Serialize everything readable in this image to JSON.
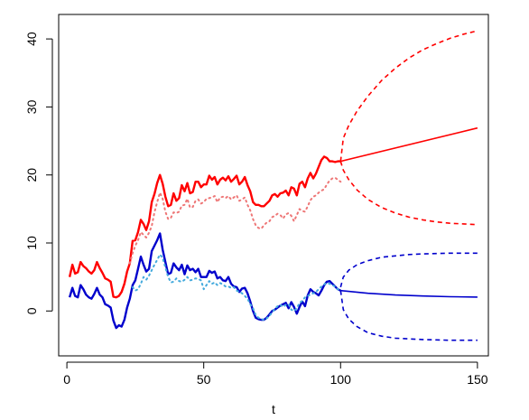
{
  "chart_data": {
    "type": "line",
    "title": "",
    "xlabel": "t",
    "ylabel": "",
    "xlim": [
      -3,
      154
    ],
    "ylim": [
      -6.6,
      43.6
    ],
    "xticks": [
      0,
      50,
      100,
      150
    ],
    "yticks": [
      0,
      10,
      20,
      30,
      40
    ],
    "grid": false,
    "legend": "none",
    "series": [
      {
        "style": "solid",
        "color": "#ff0000",
        "width": 2.4,
        "x": [
          1,
          2,
          3,
          4,
          5,
          6,
          7,
          8,
          9,
          10,
          11,
          12,
          13,
          14,
          15,
          16,
          17,
          18,
          19,
          20,
          21,
          22,
          23,
          24,
          25,
          26,
          27,
          28,
          29,
          30,
          31,
          32,
          33,
          34,
          35,
          36,
          37,
          38,
          39,
          40,
          41,
          42,
          43,
          44,
          45,
          46,
          47,
          48,
          49,
          50,
          51,
          52,
          53,
          54,
          55,
          56,
          57,
          58,
          59,
          60,
          61,
          62,
          63,
          64,
          65,
          66,
          67,
          68,
          69,
          70,
          71,
          72,
          73,
          74,
          75,
          76,
          77,
          78,
          79,
          80,
          81,
          82,
          83,
          84,
          85,
          86,
          87,
          88,
          89,
          90,
          91,
          92,
          93,
          94,
          95,
          96,
          97,
          98,
          99,
          100
        ],
        "y": [
          5.0,
          6.8,
          5.5,
          5.7,
          7.2,
          6.6,
          6.3,
          5.8,
          5.5,
          6.0,
          7.2,
          6.3,
          5.6,
          4.8,
          4.6,
          4.3,
          2.1,
          2.0,
          2.2,
          2.8,
          4.0,
          5.8,
          7.0,
          10.3,
          10.4,
          11.6,
          13.4,
          12.8,
          11.9,
          13.2,
          16.0,
          17.2,
          18.8,
          20.0,
          18.7,
          16.8,
          15.4,
          15.6,
          17.3,
          16.2,
          16.6,
          18.5,
          17.6,
          18.8,
          17.3,
          17.5,
          19.0,
          19.0,
          18.2,
          18.6,
          18.6,
          19.9,
          19.3,
          19.7,
          18.6,
          19.3,
          19.6,
          19.2,
          19.8,
          19.0,
          19.4,
          19.9,
          18.6,
          19.0,
          19.7,
          18.5,
          17.6,
          16.0,
          15.6,
          15.6,
          15.4,
          15.4,
          15.8,
          16.2,
          17.0,
          17.2,
          16.8,
          17.3,
          17.4,
          17.7,
          17.0,
          18.2,
          18.0,
          17.0,
          18.7,
          19.0,
          18.2,
          19.5,
          20.3,
          19.5,
          20.2,
          21.2,
          22.2,
          22.7,
          22.5,
          22.0,
          22.0,
          21.9,
          22.0,
          22.0
        ]
      },
      {
        "style": "dotted",
        "color": "#ee7777",
        "width": 2.0,
        "x": [
          23,
          24,
          25,
          26,
          27,
          28,
          29,
          30,
          31,
          32,
          33,
          34,
          35,
          36,
          37,
          38,
          39,
          40,
          41,
          42,
          43,
          44,
          45,
          46,
          47,
          48,
          49,
          50,
          51,
          52,
          53,
          54,
          55,
          56,
          57,
          58,
          59,
          60,
          61,
          62,
          63,
          64,
          65,
          66,
          67,
          68,
          69,
          70,
          71,
          72,
          73,
          74,
          75,
          76,
          77,
          78,
          79,
          80,
          81,
          82,
          83,
          84,
          85,
          86,
          87,
          88,
          89,
          90,
          91,
          92,
          93,
          94,
          95,
          96,
          97,
          98,
          99,
          100
        ],
        "y": [
          7.0,
          8.5,
          9.6,
          10.4,
          11.6,
          11.2,
          10.8,
          11.5,
          12.5,
          14.5,
          16.0,
          17.4,
          16.5,
          14.6,
          13.5,
          13.7,
          14.5,
          14.4,
          14.6,
          15.5,
          15.6,
          16.5,
          15.2,
          15.3,
          16.2,
          16.4,
          15.8,
          16.0,
          16.5,
          16.6,
          16.7,
          16.9,
          16.0,
          16.7,
          16.8,
          16.6,
          16.9,
          16.4,
          16.7,
          17.0,
          16.2,
          16.4,
          16.7,
          15.6,
          14.8,
          13.5,
          12.6,
          12.2,
          12.1,
          12.6,
          13.0,
          13.2,
          13.8,
          14.0,
          14.3,
          14.1,
          13.6,
          14.2,
          14.4,
          14.0,
          13.2,
          14.1,
          15.0,
          14.7,
          14.6,
          15.4,
          16.3,
          16.8,
          17.0,
          17.4,
          17.7,
          17.9,
          18.6,
          19.2,
          19.5,
          19.6,
          19.3,
          19.0
        ]
      },
      {
        "style": "solid",
        "color": "#0000cc",
        "width": 2.4,
        "x": [
          1,
          2,
          3,
          4,
          5,
          6,
          7,
          8,
          9,
          10,
          11,
          12,
          13,
          14,
          15,
          16,
          17,
          18,
          19,
          20,
          21,
          22,
          23,
          24,
          25,
          26,
          27,
          28,
          29,
          30,
          31,
          32,
          33,
          34,
          35,
          36,
          37,
          38,
          39,
          40,
          41,
          42,
          43,
          44,
          45,
          46,
          47,
          48,
          49,
          50,
          51,
          52,
          53,
          54,
          55,
          56,
          57,
          58,
          59,
          60,
          61,
          62,
          63,
          64,
          65,
          66,
          67,
          68,
          69,
          70,
          71,
          72,
          73,
          74,
          75,
          76,
          77,
          78,
          79,
          80,
          81,
          82,
          83,
          84,
          85,
          86,
          87,
          88,
          89,
          90,
          91,
          92,
          93,
          94,
          95,
          96,
          97,
          98,
          99,
          100
        ],
        "y": [
          2.0,
          3.4,
          2.2,
          2.0,
          3.8,
          3.2,
          2.4,
          2.0,
          1.8,
          2.5,
          3.4,
          2.4,
          2.0,
          1.0,
          0.8,
          0.5,
          -1.4,
          -2.5,
          -2.1,
          -2.3,
          -1.3,
          0.5,
          1.8,
          3.8,
          4.5,
          6.2,
          8.0,
          6.8,
          5.8,
          6.2,
          8.8,
          9.6,
          10.4,
          11.4,
          9.0,
          7.2,
          5.4,
          5.6,
          7.0,
          6.4,
          6.0,
          6.8,
          5.4,
          6.7,
          6.0,
          6.2,
          5.7,
          6.2,
          5.0,
          5.0,
          5.0,
          5.9,
          5.6,
          5.8,
          4.8,
          5.0,
          4.5,
          4.4,
          5.0,
          4.0,
          3.6,
          3.5,
          2.8,
          3.3,
          3.4,
          2.6,
          1.4,
          0.0,
          -1.0,
          -1.2,
          -1.3,
          -1.3,
          -1.0,
          -0.5,
          0.0,
          0.2,
          0.5,
          0.8,
          1.0,
          1.2,
          0.4,
          1.3,
          0.6,
          -0.4,
          0.6,
          1.4,
          0.7,
          2.3,
          3.2,
          2.8,
          2.6,
          2.3,
          3.0,
          3.8,
          4.3,
          4.4,
          4.0,
          3.6,
          3.2,
          3.0
        ]
      },
      {
        "style": "dotted",
        "color": "#44aadd",
        "width": 2.0,
        "x": [
          24,
          25,
          26,
          27,
          28,
          29,
          30,
          31,
          32,
          33,
          34,
          35,
          36,
          37,
          38,
          39,
          40,
          41,
          42,
          43,
          44,
          45,
          46,
          47,
          48,
          49,
          50,
          51,
          52,
          53,
          54,
          55,
          56,
          57,
          58,
          59,
          60,
          61,
          62,
          63,
          64,
          65,
          66,
          67,
          68,
          69,
          70,
          71,
          72,
          73,
          74,
          75,
          76,
          77,
          78,
          79,
          80,
          81,
          82,
          83,
          84,
          85,
          86,
          87,
          88,
          89,
          90,
          91,
          92,
          93,
          94,
          95,
          96,
          97,
          98,
          99,
          100
        ],
        "y": [
          3.5,
          3.0,
          3.2,
          4.0,
          5.0,
          4.6,
          5.2,
          6.0,
          6.8,
          7.5,
          8.3,
          7.8,
          6.4,
          5.0,
          4.2,
          4.3,
          4.8,
          4.4,
          4.3,
          4.6,
          5.0,
          4.5,
          4.6,
          4.8,
          4.7,
          4.5,
          3.2,
          3.8,
          4.4,
          4.0,
          4.2,
          3.8,
          4.1,
          3.9,
          3.6,
          3.6,
          3.4,
          3.5,
          3.0,
          2.8,
          2.6,
          2.2,
          1.8,
          1.0,
          0.4,
          -0.6,
          -1.0,
          -1.2,
          -1.3,
          -1.1,
          -0.7,
          -0.2,
          0.3,
          0.7,
          0.9,
          0.6,
          0.9,
          1.0,
          0.2,
          0.0,
          0.4,
          1.2,
          1.5,
          2.0,
          2.2,
          2.4,
          2.6,
          2.8,
          3.2,
          3.6,
          3.9,
          4.1,
          4.0,
          3.8,
          3.6,
          3.2,
          3.0
        ]
      },
      {
        "style": "solid",
        "color": "#ff0000",
        "width": 1.6,
        "forecast": "mean",
        "x": [
          100,
          150
        ],
        "y": [
          22.0,
          26.9
        ]
      },
      {
        "style": "dashed",
        "color": "#ff0000",
        "width": 1.6,
        "forecast": "upper",
        "x": [
          100,
          101,
          103,
          106,
          110,
          115,
          120,
          125,
          130,
          135,
          140,
          145,
          150
        ],
        "y": [
          22.0,
          25.4,
          27.3,
          29.4,
          31.6,
          33.9,
          35.7,
          37.2,
          38.4,
          39.3,
          40.1,
          40.7,
          41.2
        ]
      },
      {
        "style": "dashed",
        "color": "#ff0000",
        "width": 1.6,
        "forecast": "lower",
        "x": [
          100,
          101,
          103,
          106,
          110,
          115,
          120,
          125,
          130,
          135,
          140,
          145,
          150
        ],
        "y": [
          22.0,
          20.7,
          19.3,
          17.8,
          16.4,
          15.2,
          14.4,
          13.8,
          13.4,
          13.1,
          12.9,
          12.8,
          12.7
        ]
      },
      {
        "style": "solid",
        "color": "#0000cc",
        "width": 1.6,
        "forecast": "mean",
        "x": [
          100,
          110,
          120,
          130,
          140,
          150
        ],
        "y": [
          3.0,
          2.6,
          2.35,
          2.2,
          2.1,
          2.05
        ]
      },
      {
        "style": "dashed",
        "color": "#0000cc",
        "width": 1.6,
        "forecast": "upper",
        "x": [
          100,
          101,
          103,
          106,
          110,
          115,
          120,
          125,
          130,
          135,
          140,
          145,
          150
        ],
        "y": [
          3.5,
          5.0,
          6.0,
          6.8,
          7.4,
          7.9,
          8.1,
          8.3,
          8.4,
          8.45,
          8.5,
          8.5,
          8.5
        ]
      },
      {
        "style": "dashed",
        "color": "#0000cc",
        "width": 1.6,
        "forecast": "lower",
        "x": [
          100,
          101,
          103,
          106,
          110,
          115,
          120,
          125,
          130,
          135,
          140,
          145,
          150
        ],
        "y": [
          3.0,
          0.2,
          -1.2,
          -2.3,
          -3.2,
          -3.7,
          -4.0,
          -4.1,
          -4.2,
          -4.25,
          -4.3,
          -4.3,
          -4.3
        ]
      }
    ]
  }
}
